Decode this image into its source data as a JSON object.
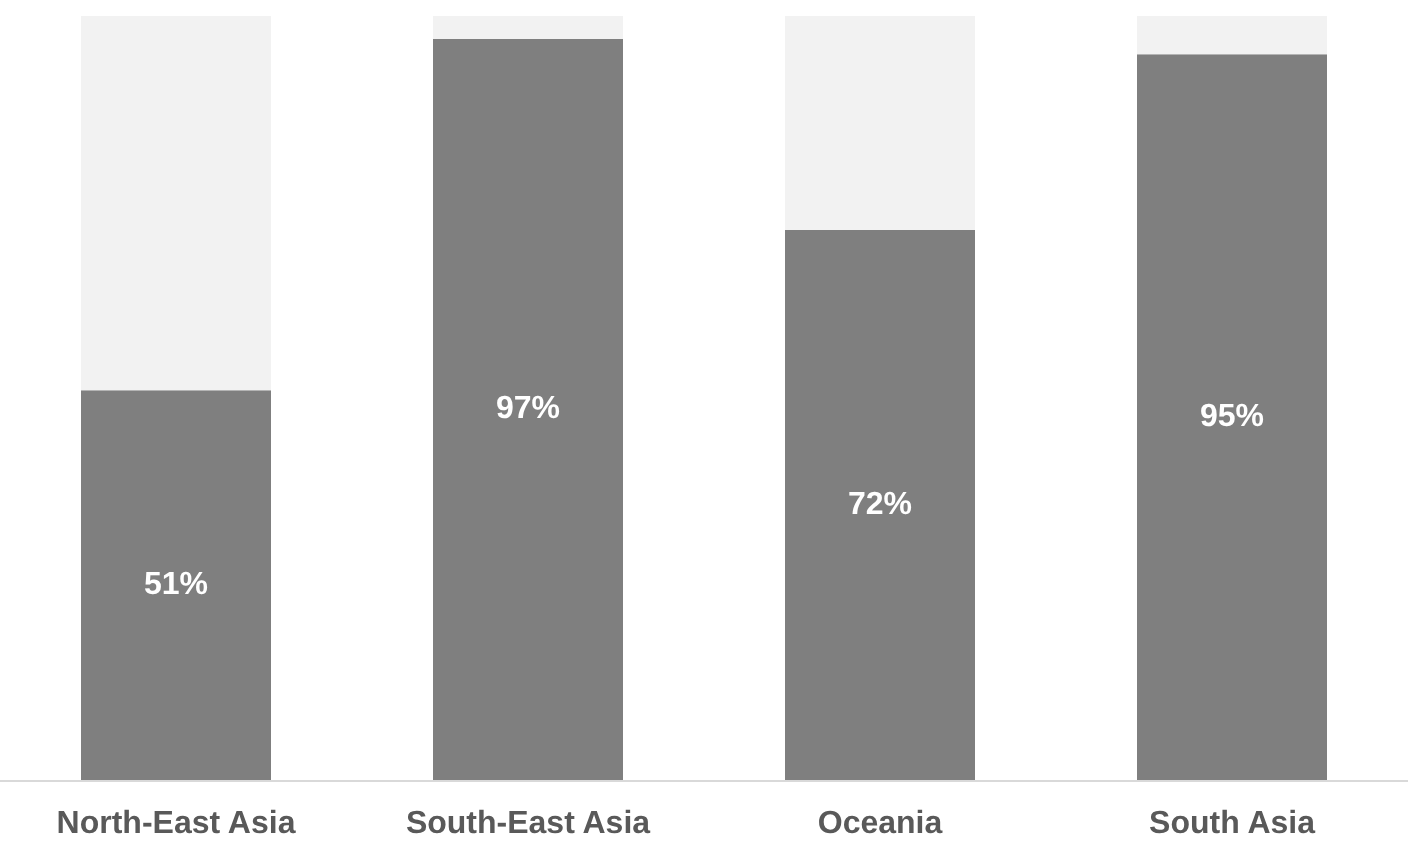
{
  "chart_data": {
    "type": "bar",
    "stacked": true,
    "categories": [
      "North-East Asia",
      "South-East Asia",
      "Oceania",
      "South Asia"
    ],
    "series": [
      {
        "color": "#7f7f7f",
        "values": [
          51,
          97,
          72,
          95
        ],
        "value_labels": [
          "51%",
          "97%",
          "72%",
          "95%"
        ]
      },
      {
        "color": "#f2f2f2",
        "values": [
          49,
          3,
          28,
          5
        ]
      }
    ],
    "ylim": [
      0,
      100
    ],
    "tick_labels": "x"
  }
}
